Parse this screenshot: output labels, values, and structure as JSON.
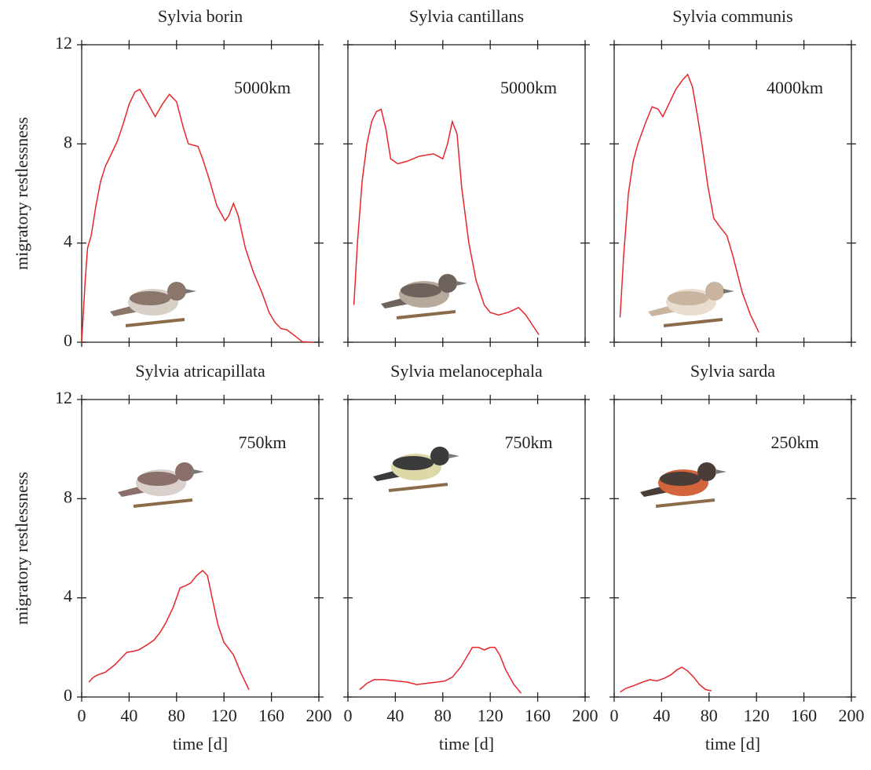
{
  "chart_data": [
    {
      "type": "line",
      "title": "Sylvia borin",
      "annotation": "5000km",
      "ylabel": "migratory restlessness",
      "color": "#e8262a",
      "x": [
        0,
        3,
        5,
        8,
        12,
        16,
        20,
        25,
        30,
        35,
        40,
        45,
        49,
        55,
        62,
        68,
        74,
        80,
        86,
        90,
        98,
        102,
        108,
        114,
        121,
        124,
        128,
        132,
        138,
        145,
        152,
        158,
        163,
        168,
        173,
        180,
        186,
        195
      ],
      "values": [
        0,
        2.5,
        3.8,
        4.3,
        5.5,
        6.5,
        7.1,
        7.6,
        8.1,
        8.8,
        9.6,
        10.1,
        10.2,
        9.7,
        9.1,
        9.6,
        10.0,
        9.7,
        8.6,
        8.0,
        7.9,
        7.4,
        6.5,
        5.5,
        4.9,
        5.1,
        5.6,
        5.1,
        3.8,
        2.8,
        2.0,
        1.2,
        0.8,
        0.55,
        0.5,
        0.25,
        0.02,
        0
      ],
      "xlim": [
        0,
        200
      ],
      "ylim": [
        0,
        12
      ],
      "xticks": [
        0,
        40,
        80,
        120,
        160,
        200
      ],
      "yticks": [
        0,
        4,
        8,
        12
      ]
    },
    {
      "type": "line",
      "title": "Sylvia cantillans",
      "annotation": "5000km",
      "color": "#e8262a",
      "x": [
        5,
        8,
        12,
        16,
        20,
        24,
        28,
        32,
        36,
        42,
        50,
        60,
        72,
        76,
        80,
        84,
        88,
        92,
        96,
        102,
        108,
        115,
        120,
        127,
        135,
        144,
        150,
        161
      ],
      "values": [
        1.5,
        4.0,
        6.5,
        8.0,
        8.9,
        9.3,
        9.4,
        8.6,
        7.4,
        7.2,
        7.3,
        7.5,
        7.6,
        7.5,
        7.4,
        8.0,
        8.9,
        8.4,
        6.2,
        4.0,
        2.5,
        1.5,
        1.2,
        1.1,
        1.2,
        1.4,
        1.1,
        0.3
      ],
      "xlim": [
        0,
        200
      ],
      "ylim": [
        0,
        12
      ],
      "xticks": [
        0,
        40,
        80,
        120,
        160,
        200
      ],
      "yticks": [
        0,
        4,
        8,
        12
      ]
    },
    {
      "type": "line",
      "title": "Sylvia communis",
      "annotation": "4000km",
      "color": "#e8262a",
      "x": [
        5,
        8,
        12,
        16,
        20,
        26,
        32,
        37,
        41,
        46,
        52,
        58,
        62,
        66,
        70,
        74,
        79,
        84,
        90,
        95,
        100,
        108,
        115,
        122
      ],
      "values": [
        1.0,
        3.5,
        6.0,
        7.3,
        8.0,
        8.8,
        9.5,
        9.4,
        9.1,
        9.6,
        10.2,
        10.6,
        10.8,
        10.3,
        9.2,
        8.0,
        6.3,
        5.0,
        4.6,
        4.3,
        3.5,
        2.0,
        1.1,
        0.4
      ],
      "xlim": [
        0,
        200
      ],
      "ylim": [
        0,
        12
      ],
      "xticks": [
        0,
        40,
        80,
        120,
        160,
        200
      ],
      "yticks": [
        0,
        4,
        8,
        12
      ]
    },
    {
      "type": "line",
      "title": "Sylvia atricapillata",
      "annotation": "750km",
      "ylabel": "migratory restlessness",
      "xlabel": "time [d]",
      "color": "#e8262a",
      "x": [
        6,
        10,
        14,
        20,
        28,
        34,
        38,
        44,
        48,
        55,
        61,
        66,
        71,
        77,
        83,
        88,
        92,
        97,
        102,
        106,
        110,
        115,
        120,
        128,
        134,
        141
      ],
      "values": [
        0.6,
        0.8,
        0.9,
        1.0,
        1.3,
        1.6,
        1.8,
        1.85,
        1.9,
        2.1,
        2.3,
        2.6,
        3.0,
        3.6,
        4.4,
        4.5,
        4.6,
        4.9,
        5.1,
        4.9,
        4.0,
        2.9,
        2.2,
        1.7,
        1.0,
        0.3
      ],
      "xlim": [
        0,
        200
      ],
      "ylim": [
        0,
        12
      ],
      "xticks": [
        0,
        40,
        80,
        120,
        160,
        200
      ],
      "yticks": [
        0,
        4,
        8,
        12
      ]
    },
    {
      "type": "line",
      "title": "Sylvia melanocephala",
      "annotation": "750km",
      "xlabel": "time [d]",
      "color": "#e8262a",
      "x": [
        10,
        16,
        22,
        30,
        40,
        50,
        58,
        66,
        75,
        82,
        88,
        95,
        100,
        105,
        110,
        115,
        120,
        124,
        128,
        133,
        140,
        146
      ],
      "values": [
        0.3,
        0.55,
        0.7,
        0.7,
        0.65,
        0.6,
        0.5,
        0.55,
        0.6,
        0.65,
        0.8,
        1.2,
        1.6,
        2.0,
        2.0,
        1.9,
        2.0,
        2.0,
        1.7,
        1.1,
        0.5,
        0.15
      ],
      "xlim": [
        0,
        200
      ],
      "ylim": [
        0,
        12
      ],
      "xticks": [
        0,
        40,
        80,
        120,
        160,
        200
      ],
      "yticks": [
        0,
        4,
        8,
        12
      ]
    },
    {
      "type": "line",
      "title": "Sylvia sarda",
      "annotation": "250km",
      "xlabel": "time [d]",
      "color": "#e8262a",
      "x": [
        5,
        10,
        16,
        24,
        30,
        36,
        42,
        48,
        53,
        57,
        62,
        67,
        72,
        77,
        82
      ],
      "values": [
        0.2,
        0.35,
        0.45,
        0.6,
        0.7,
        0.65,
        0.75,
        0.9,
        1.1,
        1.2,
        1.05,
        0.8,
        0.5,
        0.3,
        0.25
      ],
      "xlim": [
        0,
        200
      ],
      "ylim": [
        0,
        12
      ],
      "xticks": [
        0,
        40,
        80,
        120,
        160,
        200
      ],
      "yticks": [
        0,
        4,
        8,
        12
      ]
    }
  ]
}
